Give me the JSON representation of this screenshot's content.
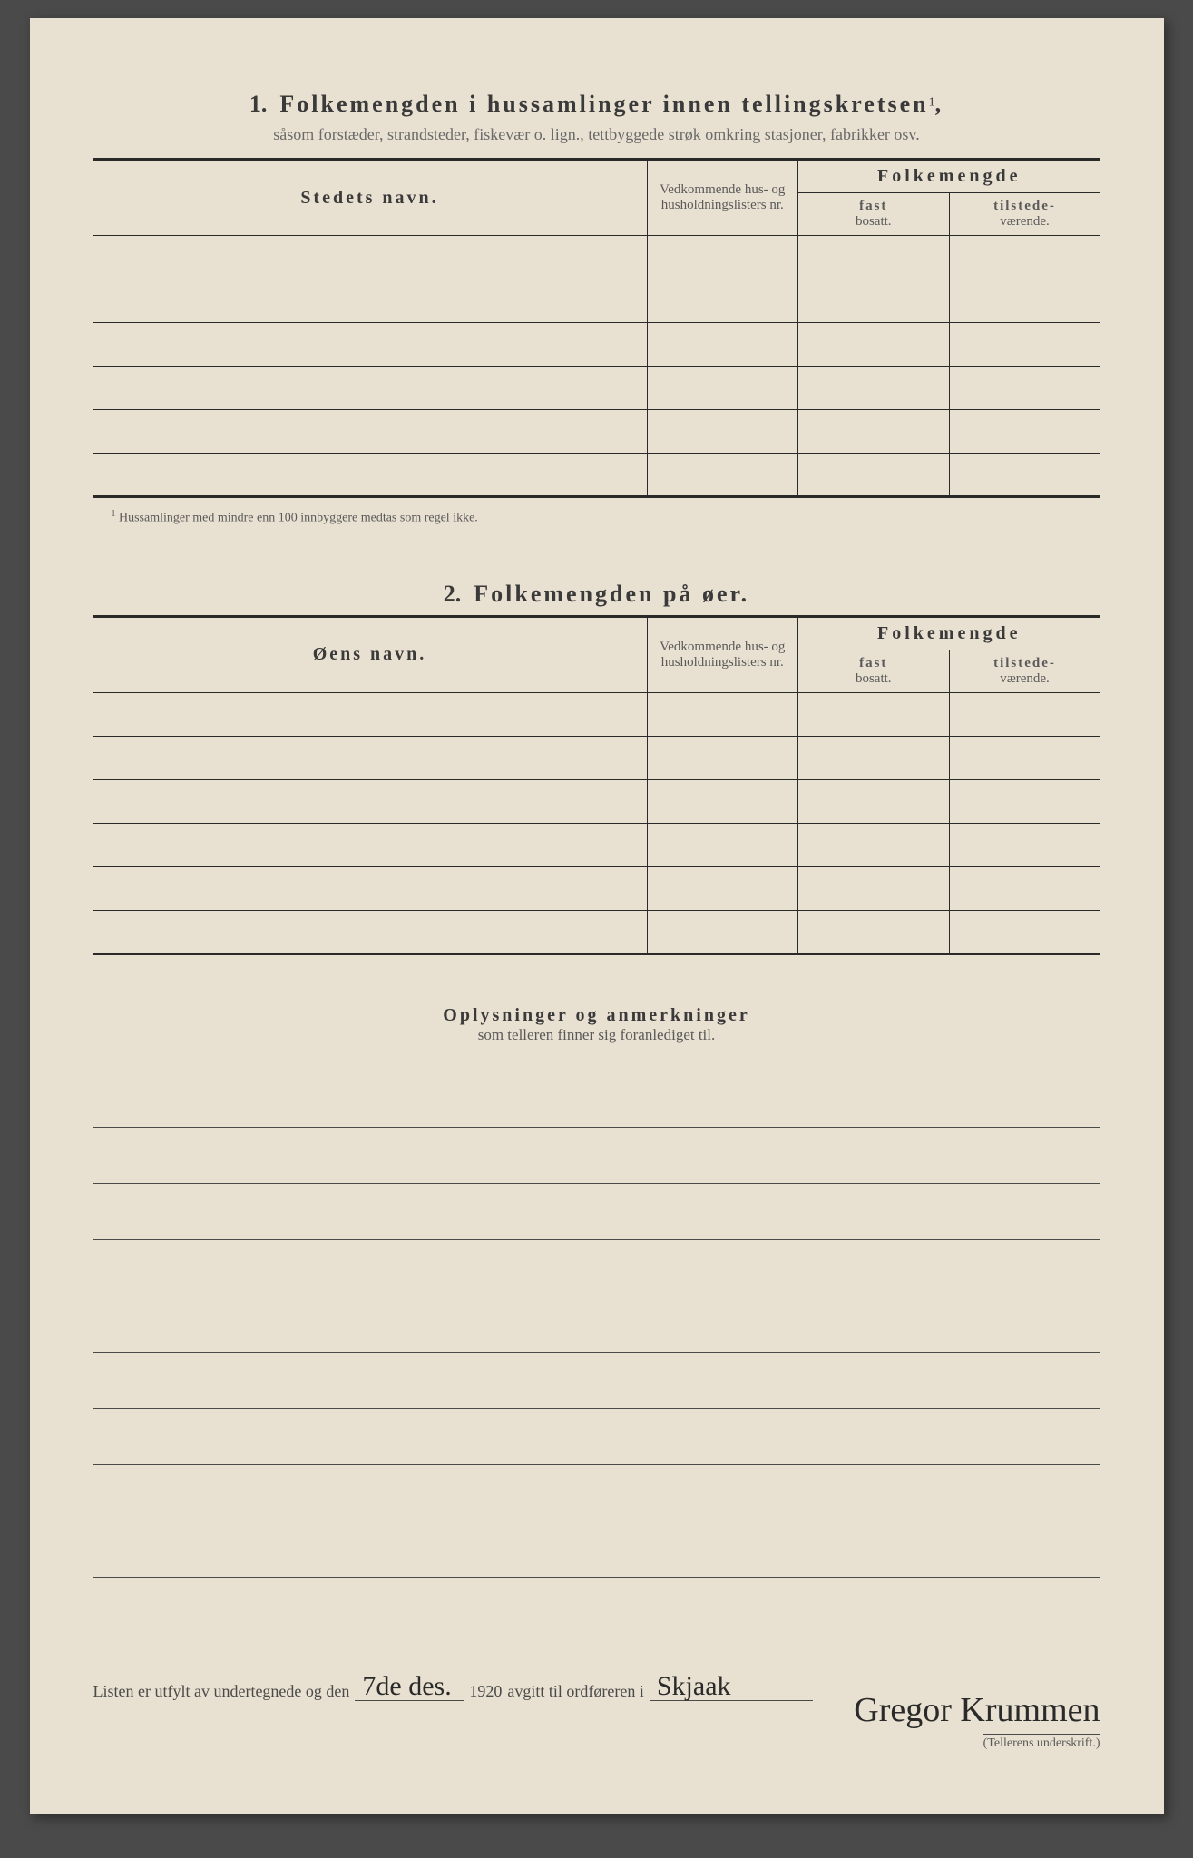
{
  "section1": {
    "number": "1.",
    "title": "Folkemengden i hussamlinger innen tellingskretsen",
    "title_sup": "1",
    "subtitle": "såsom forstæder, strandsteder, fiskevær o. lign., tettbyggede strøk omkring stasjoner, fabrikker osv.",
    "headers": {
      "name": "Stedets navn.",
      "ref": "Vedkommende hus- og husholdningslisters nr.",
      "pop_group": "Folkemengde",
      "pop_fast_b": "fast",
      "pop_fast": "bosatt.",
      "pop_tilst_b": "tilstede-",
      "pop_tilst": "værende."
    },
    "rows": [
      "",
      "",
      "",
      "",
      "",
      ""
    ],
    "footnote_sup": "1",
    "footnote": "Hussamlinger med mindre enn 100 innbyggere medtas som regel ikke."
  },
  "section2": {
    "number": "2.",
    "title": "Folkemengden på øer.",
    "headers": {
      "name": "Øens navn.",
      "ref": "Vedkommende hus- og husholdningslisters nr.",
      "pop_group": "Folkemengde",
      "pop_fast_b": "fast",
      "pop_fast": "bosatt.",
      "pop_tilst_b": "tilstede-",
      "pop_tilst": "værende."
    },
    "rows": [
      "",
      "",
      "",
      "",
      "",
      ""
    ]
  },
  "section3": {
    "title": "Oplysninger og anmerkninger",
    "subtitle": "som telleren finner sig foranlediget til.",
    "line_count": 9
  },
  "footer": {
    "text_a": "Listen er utfylt av undertegnede og den",
    "date_hand": "7de des.",
    "year": "1920",
    "text_b": "avgitt til ordføreren i",
    "place_hand": "Skjaak",
    "signature": "Gregor Krummen",
    "sig_label": "(Tellerens underskrift.)"
  },
  "style": {
    "paper_color": "#e8e0d0",
    "ink_color": "#3a3a3a",
    "faint_color": "#6a6a6a",
    "rule_color": "#2a2a2a"
  }
}
